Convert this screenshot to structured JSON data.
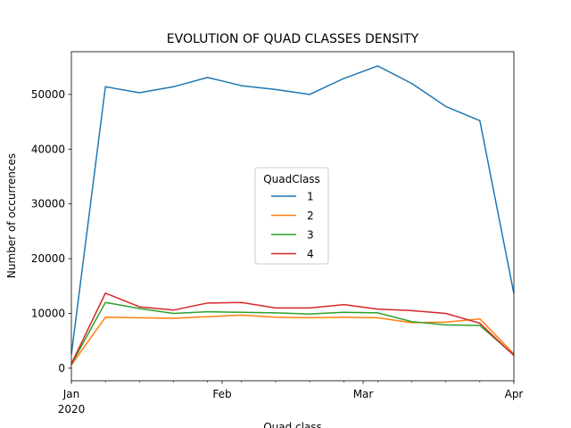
{
  "chart_data": {
    "type": "line",
    "title": "EVOLUTION OF QUAD CLASSES DENSITY",
    "xlabel": "Quad class",
    "ylabel": "Number of occurrences",
    "x": [
      "2020-01-01",
      "2020-01-08",
      "2020-01-15",
      "2020-01-22",
      "2020-01-29",
      "2020-02-05",
      "2020-02-12",
      "2020-02-19",
      "2020-02-26",
      "2020-03-04",
      "2020-03-11",
      "2020-03-18",
      "2020-03-25",
      "2020-04-01"
    ],
    "xlim": [
      "2020-01-01",
      "2020-04-01"
    ],
    "ylim": [
      -2300,
      57800
    ],
    "x_ticks": [
      {
        "date": "2020-01-01",
        "label": "Jan",
        "sublabel": "2020"
      },
      {
        "date": "2020-02-01",
        "label": "Feb",
        "sublabel": ""
      },
      {
        "date": "2020-03-01",
        "label": "Mar",
        "sublabel": ""
      },
      {
        "date": "2020-04-01",
        "label": "Apr",
        "sublabel": ""
      }
    ],
    "x_minor_ticks": [
      "2020-01-08",
      "2020-01-15",
      "2020-01-22",
      "2020-01-29",
      "2020-02-05",
      "2020-02-12",
      "2020-02-19",
      "2020-02-26",
      "2020-03-04",
      "2020-03-11",
      "2020-03-18",
      "2020-03-25"
    ],
    "y_ticks": [
      {
        "value": 0,
        "label": "0"
      },
      {
        "value": 10000,
        "label": "10000"
      },
      {
        "value": 20000,
        "label": "20000"
      },
      {
        "value": 30000,
        "label": "30000"
      },
      {
        "value": 40000,
        "label": "40000"
      },
      {
        "value": 50000,
        "label": "50000"
      }
    ],
    "grid": false,
    "legend": {
      "title": "QuadClass",
      "placement": "center"
    },
    "series": [
      {
        "name": "1",
        "color": "#1f77b4",
        "values": [
          2500,
          51400,
          50300,
          51400,
          53100,
          51600,
          50900,
          50000,
          52900,
          55200,
          52000,
          47800,
          45200,
          13600
        ]
      },
      {
        "name": "2",
        "color": "#ff7f0e",
        "values": [
          600,
          9300,
          9200,
          9100,
          9400,
          9700,
          9300,
          9200,
          9300,
          9200,
          8300,
          8400,
          9000,
          2600
        ]
      },
      {
        "name": "3",
        "color": "#2ca02c",
        "values": [
          700,
          12000,
          10900,
          10000,
          10300,
          10200,
          10100,
          9900,
          10200,
          10100,
          8500,
          7900,
          7800,
          2400
        ]
      },
      {
        "name": "4",
        "color": "#d62728",
        "values": [
          800,
          13700,
          11200,
          10600,
          11900,
          12000,
          11000,
          11000,
          11600,
          10800,
          10500,
          10000,
          8200,
          2300
        ]
      }
    ]
  }
}
